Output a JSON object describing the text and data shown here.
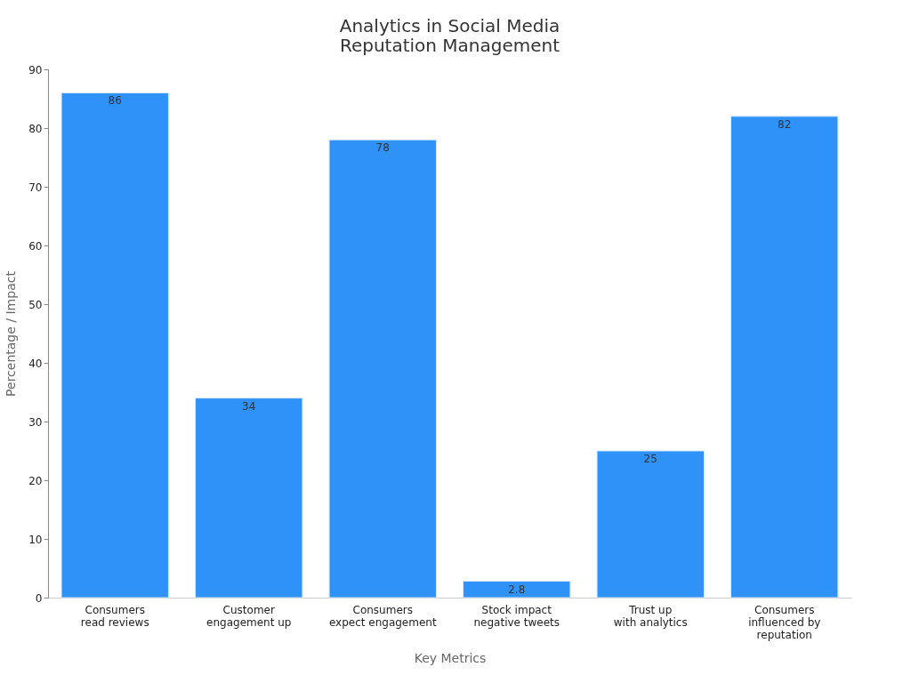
{
  "chart_data": {
    "type": "bar",
    "title": "Analytics in Social Media\nReputation Management",
    "xlabel": "Key Metrics",
    "ylabel": "Percentage / Impact",
    "categories": [
      "Consumers\nread reviews",
      "Customer\nengagement up",
      "Consumers\nexpect engagement",
      "Stock impact\nnegative tweets",
      "Trust up\nwith analytics",
      "Consumers\ninfluenced by\nreputation"
    ],
    "values": [
      86,
      34,
      78,
      2.8,
      25,
      82
    ],
    "color": "#2f92f8",
    "ylim": [
      0,
      90
    ],
    "yticks": [
      0,
      10,
      20,
      30,
      40,
      50,
      60,
      70,
      80,
      90
    ],
    "grid": false,
    "data_labels": true
  }
}
